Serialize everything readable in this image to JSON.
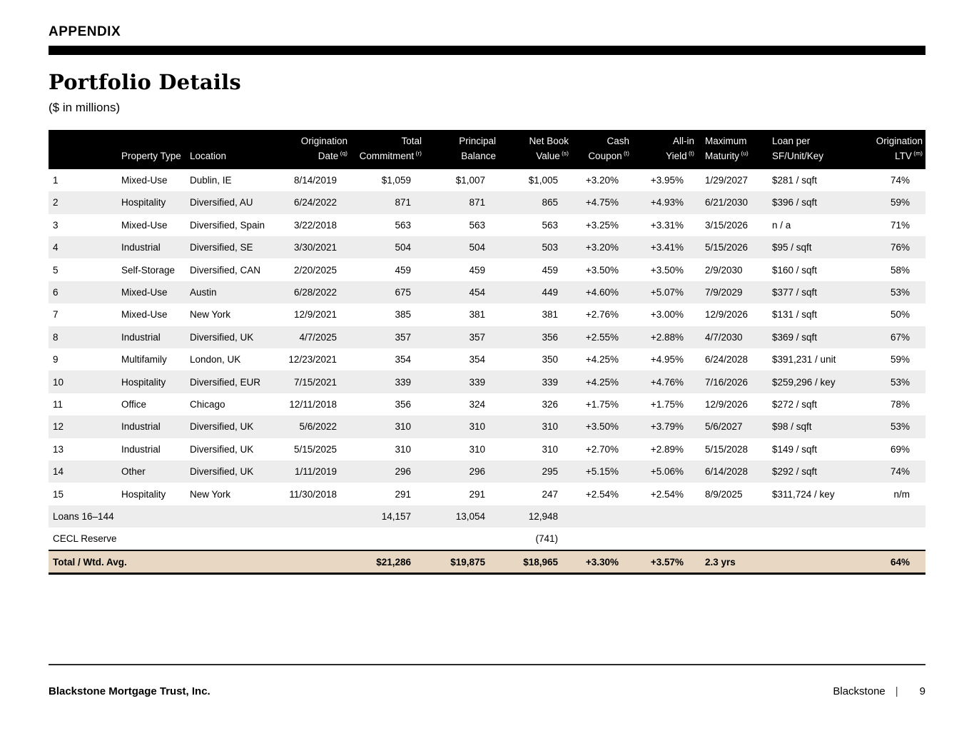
{
  "page": {
    "eyebrow": "APPENDIX",
    "title": "Portfolio Details",
    "subtitle": "($ in millions)"
  },
  "colors": {
    "header_bar": "#000000",
    "stripe_gray": "#ededed",
    "total_row_tan": "#e7d7c3"
  },
  "table": {
    "columns": [
      {
        "id": "row_number",
        "line1": "",
        "line2": "",
        "sup": "",
        "align": "left"
      },
      {
        "id": "property_type",
        "line1": "",
        "line2": "Property Type",
        "sup": "",
        "align": "left"
      },
      {
        "id": "location",
        "line1": "",
        "line2": "Location",
        "sup": "",
        "align": "left"
      },
      {
        "id": "origination_date",
        "line1": "Origination",
        "line2": "Date",
        "sup": "(q)",
        "align": "right"
      },
      {
        "id": "total_commitment",
        "line1": "Total",
        "line2": "Commitment",
        "sup": "(r)",
        "align": "right"
      },
      {
        "id": "principal_balance",
        "line1": "Principal",
        "line2": "Balance",
        "sup": "",
        "align": "right"
      },
      {
        "id": "net_book_value",
        "line1": "Net Book",
        "line2": "Value",
        "sup": "(s)",
        "align": "right"
      },
      {
        "id": "cash_coupon",
        "line1": "Cash",
        "line2": "Coupon",
        "sup": "(t)",
        "align": "right"
      },
      {
        "id": "all_in_yield",
        "line1": "All-in",
        "line2": "Yield",
        "sup": "(t)",
        "align": "right"
      },
      {
        "id": "maximum_maturity",
        "line1": "Maximum",
        "line2": "Maturity",
        "sup": "(u)",
        "align": "left"
      },
      {
        "id": "loan_per",
        "line1": "Loan per",
        "line2": "SF/Unit/Key",
        "sup": "",
        "align": "left"
      },
      {
        "id": "origination_ltv",
        "line1": "Origination",
        "line2": "LTV",
        "sup": "(m)",
        "align": "right"
      }
    ],
    "body_rows": [
      {
        "kind": "data",
        "cells": [
          "1",
          "Mixed-Use",
          "Dublin, IE",
          "8/14/2019",
          "$1,059",
          "$1,007",
          "$1,005",
          "+3.20%",
          "+3.95%",
          "1/29/2027",
          "$281 / sqft",
          "74%"
        ]
      },
      {
        "kind": "data",
        "cells": [
          "2",
          "Hospitality",
          "Diversified, AU",
          "6/24/2022",
          "871",
          "871",
          "865",
          "+4.75%",
          "+4.93%",
          "6/21/2030",
          "$396 / sqft",
          "59%"
        ]
      },
      {
        "kind": "data",
        "cells": [
          "3",
          "Mixed-Use",
          "Diversified, Spain",
          "3/22/2018",
          "563",
          "563",
          "563",
          "+3.25%",
          "+3.31%",
          "3/15/2026",
          "n / a",
          "71%"
        ]
      },
      {
        "kind": "data",
        "cells": [
          "4",
          "Industrial",
          "Diversified, SE",
          "3/30/2021",
          "504",
          "504",
          "503",
          "+3.20%",
          "+3.41%",
          "5/15/2026",
          "$95 / sqft",
          "76%"
        ]
      },
      {
        "kind": "data",
        "cells": [
          "5",
          "Self-Storage",
          "Diversified, CAN",
          "2/20/2025",
          "459",
          "459",
          "459",
          "+3.50%",
          "+3.50%",
          "2/9/2030",
          "$160 / sqft",
          "58%"
        ]
      },
      {
        "kind": "data",
        "cells": [
          "6",
          "Mixed-Use",
          "Austin",
          "6/28/2022",
          "675",
          "454",
          "449",
          "+4.60%",
          "+5.07%",
          "7/9/2029",
          "$377 / sqft",
          "53%"
        ]
      },
      {
        "kind": "data",
        "cells": [
          "7",
          "Mixed-Use",
          "New York",
          "12/9/2021",
          "385",
          "381",
          "381",
          "+2.76%",
          "+3.00%",
          "12/9/2026",
          "$131 / sqft",
          "50%"
        ]
      },
      {
        "kind": "data",
        "cells": [
          "8",
          "Industrial",
          "Diversified, UK",
          "4/7/2025",
          "357",
          "357",
          "356",
          "+2.55%",
          "+2.88%",
          "4/7/2030",
          "$369 / sqft",
          "67%"
        ]
      },
      {
        "kind": "data",
        "cells": [
          "9",
          "Multifamily",
          "London, UK",
          "12/23/2021",
          "354",
          "354",
          "350",
          "+4.25%",
          "+4.95%",
          "6/24/2028",
          "$391,231 / unit",
          "59%"
        ]
      },
      {
        "kind": "data",
        "cells": [
          "10",
          "Hospitality",
          "Diversified, EUR",
          "7/15/2021",
          "339",
          "339",
          "339",
          "+4.25%",
          "+4.76%",
          "7/16/2026",
          "$259,296 / key",
          "53%"
        ]
      },
      {
        "kind": "data",
        "cells": [
          "11",
          "Office",
          "Chicago",
          "12/11/2018",
          "356",
          "324",
          "326",
          "+1.75%",
          "+1.75%",
          "12/9/2026",
          "$272 / sqft",
          "78%"
        ]
      },
      {
        "kind": "data",
        "cells": [
          "12",
          "Industrial",
          "Diversified, UK",
          "5/6/2022",
          "310",
          "310",
          "310",
          "+3.50%",
          "+3.79%",
          "5/6/2027",
          "$98 / sqft",
          "53%"
        ]
      },
      {
        "kind": "data",
        "cells": [
          "13",
          "Industrial",
          "Diversified, UK",
          "5/15/2025",
          "310",
          "310",
          "310",
          "+2.70%",
          "+2.89%",
          "5/15/2028",
          "$149 / sqft",
          "69%"
        ]
      },
      {
        "kind": "data",
        "cells": [
          "14",
          "Other",
          "Diversified, UK",
          "1/11/2019",
          "296",
          "296",
          "295",
          "+5.15%",
          "+5.06%",
          "6/14/2028",
          "$292 / sqft",
          "74%"
        ]
      },
      {
        "kind": "data",
        "cells": [
          "15",
          "Hospitality",
          "New York",
          "11/30/2018",
          "291",
          "291",
          "247",
          "+2.54%",
          "+2.54%",
          "8/9/2025",
          "$311,724 / key",
          "n/m"
        ]
      },
      {
        "kind": "group",
        "cells": [
          "Loans 16–144",
          "",
          "",
          "",
          "14,157",
          "13,054",
          "12,948",
          "",
          "",
          "",
          "",
          ""
        ]
      },
      {
        "kind": "group",
        "cells": [
          "CECL Reserve",
          "",
          "",
          "",
          "",
          "",
          "(741)",
          "",
          "",
          "",
          "",
          ""
        ]
      },
      {
        "kind": "total",
        "cells": [
          "Total / Wtd. Avg.",
          "",
          "",
          "",
          "$21,286",
          "$19,875",
          "$18,965",
          "+3.30%",
          "+3.57%",
          "2.3 yrs",
          "",
          "64%"
        ]
      }
    ]
  },
  "footer": {
    "company": "Blackstone Mortgage Trust, Inc.",
    "brand": "Blackstone",
    "divider": "|",
    "page_number": "9"
  }
}
